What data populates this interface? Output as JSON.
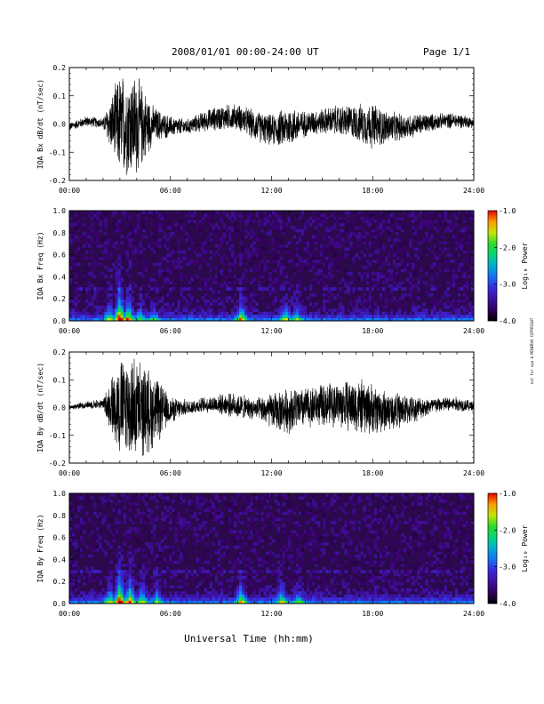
{
  "header": {
    "title": "2008/01/01  00:00-24:00 UT",
    "page": "Page 1/1"
  },
  "footer": {
    "xlabel": "Universal Time (hh:mm)"
  },
  "side_note": "not for spa & MINERVA COPYRIGHT",
  "colors": {
    "trace": "#000000",
    "spec_background": "#2a0a4a"
  },
  "chart_data": [
    {
      "type": "line",
      "ylabel": "IQA Bx dB/dt (nT/sec)",
      "xlim": [
        0,
        24
      ],
      "ylim": [
        -0.2,
        0.2
      ],
      "xticks": [
        "00:00",
        "06:00",
        "12:00",
        "18:00",
        "24:00"
      ],
      "yticks": [
        "-0.2",
        "-0.1",
        "0.0",
        "0.1",
        "0.2"
      ],
      "series": [
        {
          "x": [
            0,
            1,
            2,
            3,
            3.5,
            4,
            5,
            6,
            7,
            8,
            9,
            10,
            11,
            12,
            13,
            14,
            15,
            16,
            17,
            18,
            19,
            20,
            21,
            22,
            23,
            24
          ],
          "amplitude": [
            0.015,
            0.02,
            0.02,
            0.2,
            0.2,
            0.2,
            0.07,
            0.04,
            0.03,
            0.04,
            0.05,
            0.05,
            0.06,
            0.06,
            0.08,
            0.05,
            0.05,
            0.06,
            0.07,
            0.09,
            0.06,
            0.05,
            0.04,
            0.03,
            0.03,
            0.02
          ],
          "offset": [
            -0.01,
            0.0,
            -0.01,
            -0.01,
            0.0,
            0.0,
            0.01,
            0.0,
            -0.01,
            0.0,
            0.01,
            0.02,
            0.0,
            -0.01,
            0.0,
            0.0,
            0.0,
            0.0,
            0.0,
            0.0,
            0.0,
            0.0,
            0.0,
            0.0,
            0.0,
            0.0
          ]
        }
      ]
    },
    {
      "type": "heatmap",
      "ylabel": "IQA Bx Freq (Hz)",
      "xlim": [
        0,
        24
      ],
      "ylim": [
        0,
        1.0
      ],
      "xticks": [
        "00:00",
        "06:00",
        "12:00",
        "18:00",
        "24:00"
      ],
      "yticks": [
        "0.0",
        "0.2",
        "0.4",
        "0.6",
        "0.8",
        "1.0"
      ],
      "colorbar": {
        "label": "Log₁₀ Power",
        "range": [
          -4.0,
          -1.0
        ],
        "ticks": [
          "-1.0",
          "-2.0",
          "-3.0",
          "-4.0"
        ]
      },
      "bursts": [
        {
          "t": 2.4,
          "strength": 0.6
        },
        {
          "t": 3.0,
          "strength": 1.0
        },
        {
          "t": 3.5,
          "strength": 0.8
        },
        {
          "t": 4.2,
          "strength": 0.5
        },
        {
          "t": 5.0,
          "strength": 0.4
        },
        {
          "t": 10.2,
          "strength": 0.7
        },
        {
          "t": 12.8,
          "strength": 0.6
        },
        {
          "t": 13.5,
          "strength": 0.5
        }
      ]
    },
    {
      "type": "line",
      "ylabel": "IQA By dB/dt (nT/sec)",
      "xlim": [
        0,
        24
      ],
      "ylim": [
        -0.2,
        0.2
      ],
      "xticks": [
        "00:00",
        "06:00",
        "12:00",
        "18:00",
        "24:00"
      ],
      "yticks": [
        "-0.2",
        "-0.1",
        "0.0",
        "0.1",
        "0.2"
      ],
      "series": [
        {
          "x": [
            0,
            1,
            2,
            3,
            3.5,
            4,
            5,
            6,
            7,
            8,
            9,
            10,
            11,
            12,
            13,
            14,
            15,
            16,
            17,
            18,
            19,
            20,
            21,
            22,
            23,
            24
          ],
          "amplitude": [
            0.01,
            0.015,
            0.02,
            0.2,
            0.2,
            0.2,
            0.15,
            0.05,
            0.03,
            0.03,
            0.04,
            0.05,
            0.04,
            0.07,
            0.09,
            0.08,
            0.08,
            0.09,
            0.11,
            0.1,
            0.08,
            0.06,
            0.04,
            0.03,
            0.03,
            0.02
          ],
          "offset": [
            0,
            0,
            0,
            0,
            0,
            0,
            0,
            0,
            0,
            0,
            0,
            0,
            0,
            0,
            0,
            0,
            0,
            0,
            0,
            0,
            0,
            0,
            0,
            0,
            0,
            0
          ]
        }
      ]
    },
    {
      "type": "heatmap",
      "ylabel": "IQA By Freq (Hz)",
      "xlim": [
        0,
        24
      ],
      "ylim": [
        0,
        1.0
      ],
      "xticks": [
        "00:00",
        "06:00",
        "12:00",
        "18:00",
        "24:00"
      ],
      "yticks": [
        "0.0",
        "0.2",
        "0.4",
        "0.6",
        "0.8",
        "1.0"
      ],
      "colorbar": {
        "label": "Log₁₀ Power",
        "range": [
          -4.0,
          -1.0
        ],
        "ticks": [
          "-1.0",
          "-2.0",
          "-3.0",
          "-4.0"
        ]
      },
      "bursts": [
        {
          "t": 2.4,
          "strength": 0.6
        },
        {
          "t": 3.0,
          "strength": 1.0
        },
        {
          "t": 3.6,
          "strength": 0.8
        },
        {
          "t": 4.3,
          "strength": 0.6
        },
        {
          "t": 5.2,
          "strength": 0.5
        },
        {
          "t": 10.2,
          "strength": 0.7
        },
        {
          "t": 12.6,
          "strength": 0.6
        },
        {
          "t": 13.6,
          "strength": 0.5
        }
      ]
    }
  ]
}
